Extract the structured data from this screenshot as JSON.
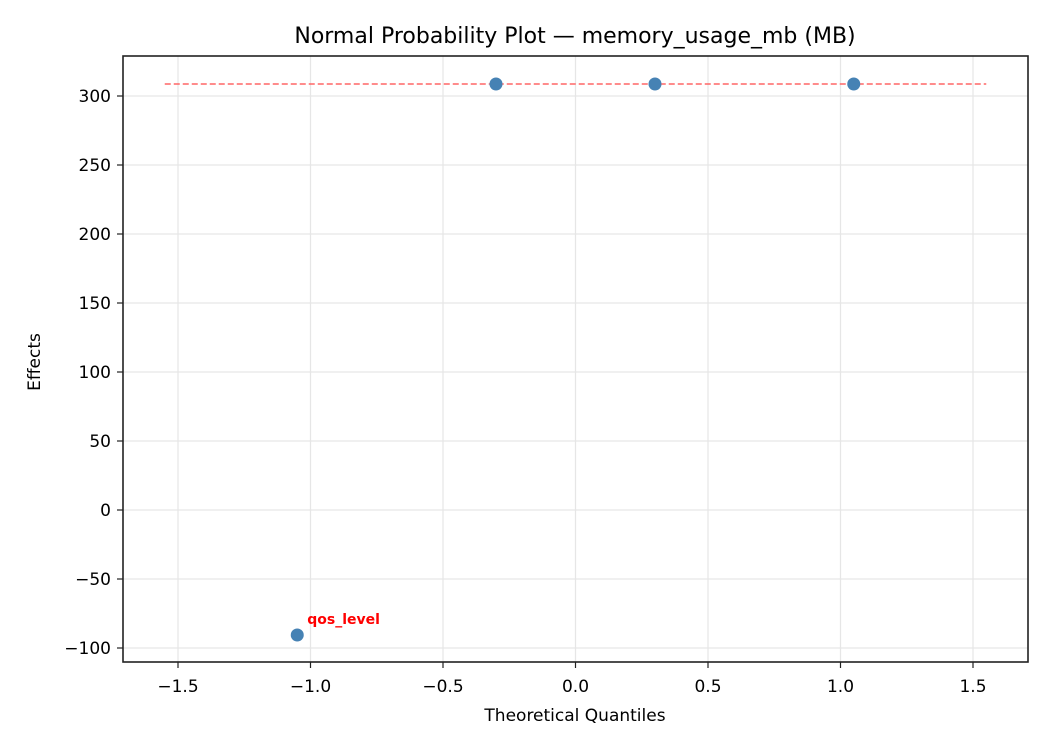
{
  "chart_data": {
    "type": "scatter",
    "title": "Normal Probability Plot — memory_usage_mb (MB)",
    "xlabel": "Theoretical Quantiles",
    "ylabel": "Effects",
    "xlim": [
      -1.71,
      1.71
    ],
    "ylim": [
      -110,
      330
    ],
    "xticks": [
      -1.5,
      -1.0,
      -0.5,
      0.0,
      0.5,
      1.0,
      1.5
    ],
    "xtick_labels": [
      "−1.5",
      "−1.0",
      "−0.5",
      "0.0",
      "0.5",
      "1.0",
      "1.5"
    ],
    "yticks": [
      -100,
      -50,
      0,
      50,
      100,
      150,
      200,
      250,
      300
    ],
    "ytick_labels": [
      "−100",
      "−50",
      "0",
      "50",
      "100",
      "150",
      "200",
      "250",
      "300"
    ],
    "grid": true,
    "series": [
      {
        "name": "effects",
        "color": "#4682b4",
        "points": [
          {
            "x": -1.05,
            "y": -90.6,
            "label": "qos_level"
          },
          {
            "x": -0.3,
            "y": 308.7,
            "label": ""
          },
          {
            "x": 0.3,
            "y": 308.7,
            "label": ""
          },
          {
            "x": 1.05,
            "y": 308.7,
            "label": ""
          }
        ]
      }
    ],
    "reference_line": {
      "style": "dashed",
      "color": "#ff6666",
      "x": [
        -1.55,
        1.55
      ],
      "y": [
        308.7,
        308.7
      ]
    },
    "annotations": [
      {
        "text": "qos_level",
        "x": -1.05,
        "y": -90.6,
        "color": "#ff0000"
      }
    ]
  }
}
